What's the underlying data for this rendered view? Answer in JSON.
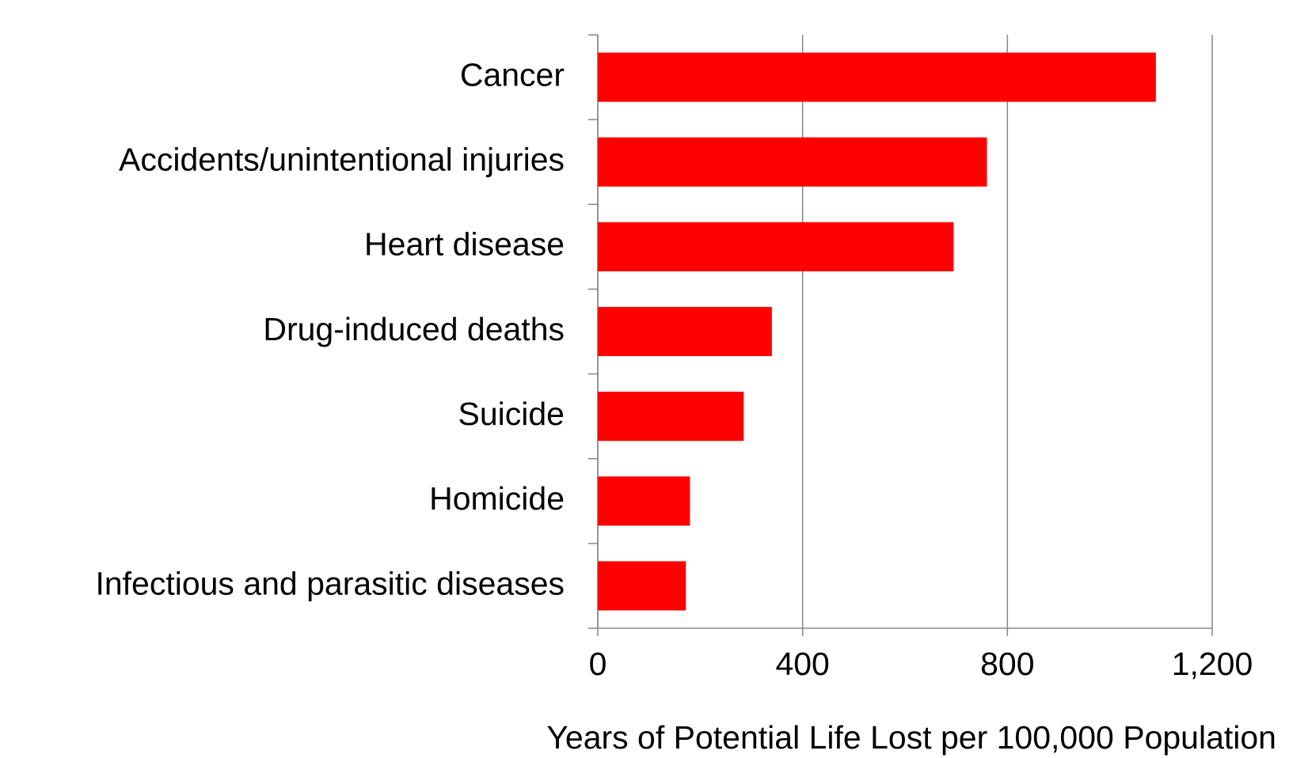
{
  "chart_data": {
    "type": "bar",
    "orientation": "horizontal",
    "x_label": "Years of Potential Life Lost per 100,000 Population",
    "categories": [
      "Cancer",
      "Accidents/unintentional injuries",
      "Heart disease",
      "Drug-induced deaths",
      "Suicide",
      "Homicide",
      "Infectious and parasitic diseases"
    ],
    "values": [
      1090,
      760,
      695,
      340,
      285,
      180,
      172
    ],
    "color": "#ff0000",
    "xlim": [
      0,
      1200
    ],
    "xticks": [
      0,
      400,
      800,
      {
        "value": 1200,
        "label": "1,200"
      }
    ],
    "grid": true
  }
}
